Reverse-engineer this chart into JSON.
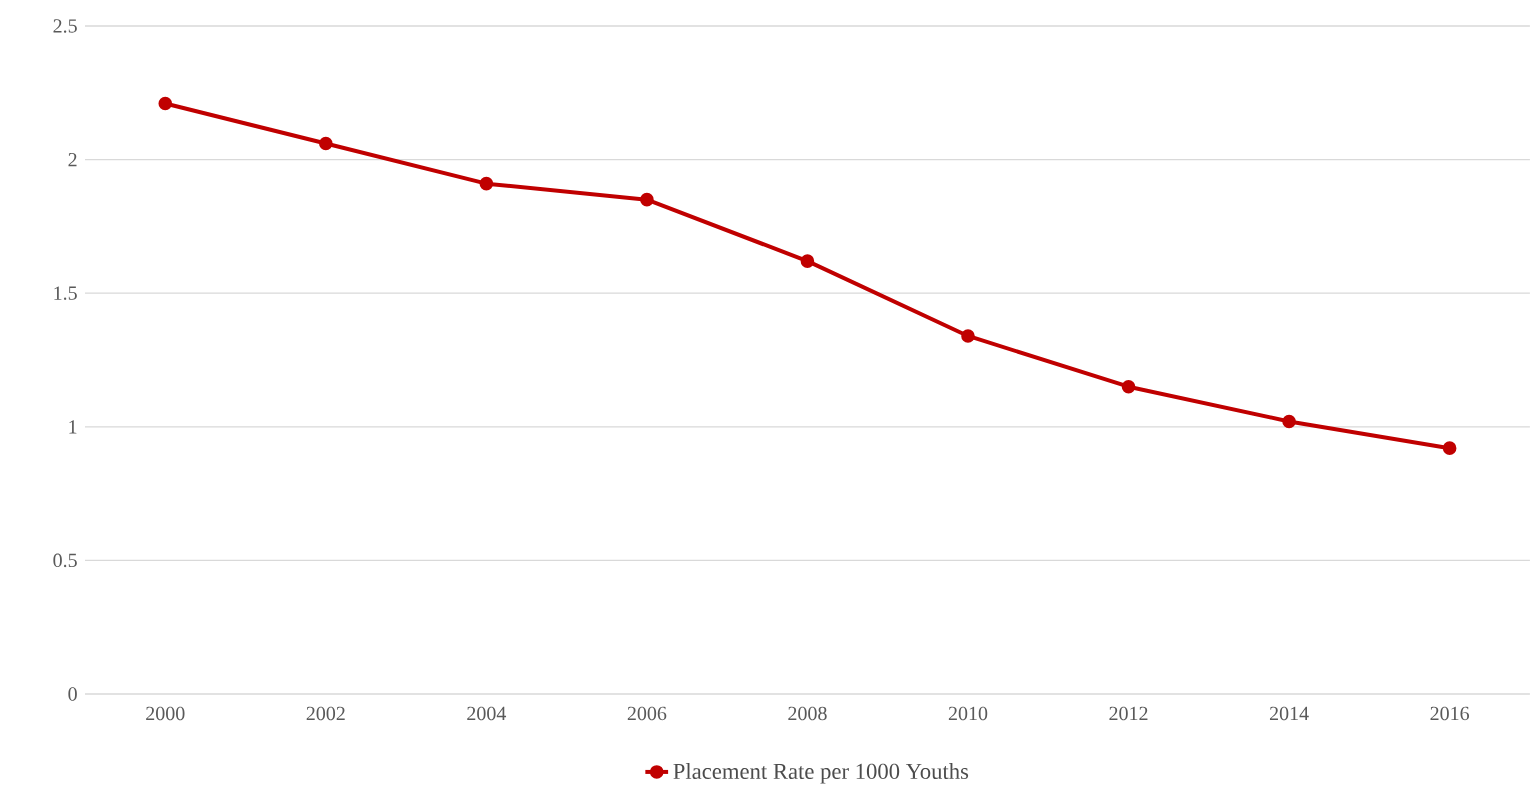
{
  "chart_data": {
    "type": "line",
    "categories": [
      "2000",
      "2002",
      "2004",
      "2006",
      "2008",
      "2010",
      "2012",
      "2014",
      "2016"
    ],
    "series": [
      {
        "name": "Placement Rate per 1000 Youths",
        "color": "#c00000",
        "values": [
          2.21,
          2.06,
          1.91,
          1.85,
          1.62,
          1.34,
          1.15,
          1.02,
          0.92
        ]
      }
    ],
    "ylim": [
      0,
      2.5
    ],
    "yticks": [
      0,
      0.5,
      1,
      1.5,
      2,
      2.5
    ],
    "grid": "y",
    "legend": "bottom",
    "marker": "circle",
    "line_style": "solid"
  }
}
